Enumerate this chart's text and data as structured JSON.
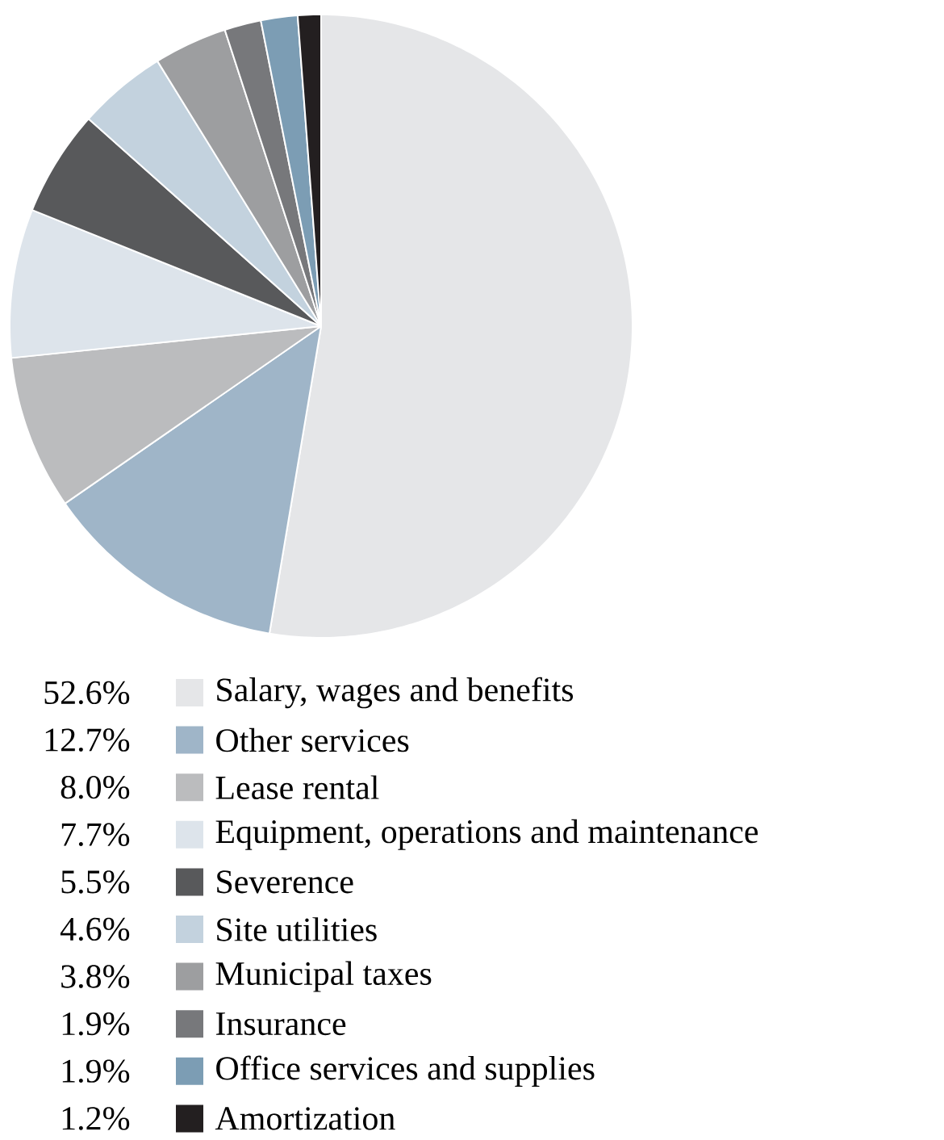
{
  "chart_data": {
    "type": "pie",
    "legend": "bottom",
    "categories": [
      "Salary, wages and benefits",
      "Other services",
      "Lease rental",
      "Equipment, operations and maintenance",
      "Severence",
      "Site utilities",
      "Municipal taxes",
      "Insurance",
      "Office services and supplies",
      "Amortization"
    ],
    "values": [
      52.6,
      12.7,
      8.0,
      7.7,
      5.5,
      4.6,
      3.8,
      1.9,
      1.9,
      1.2
    ],
    "value_labels": [
      "52.6%",
      "12.7%",
      "8.0%",
      "7.7%",
      "5.5%",
      "4.6%",
      "3.8%",
      "1.9%",
      "1.9%",
      "1.2%"
    ],
    "colors": [
      "#e5e6e8",
      "#9fb5c8",
      "#bbbcbe",
      "#dde4eb",
      "#58595b",
      "#c3d2de",
      "#9d9ea0",
      "#77787b",
      "#7c9db4",
      "#231f20"
    ]
  }
}
